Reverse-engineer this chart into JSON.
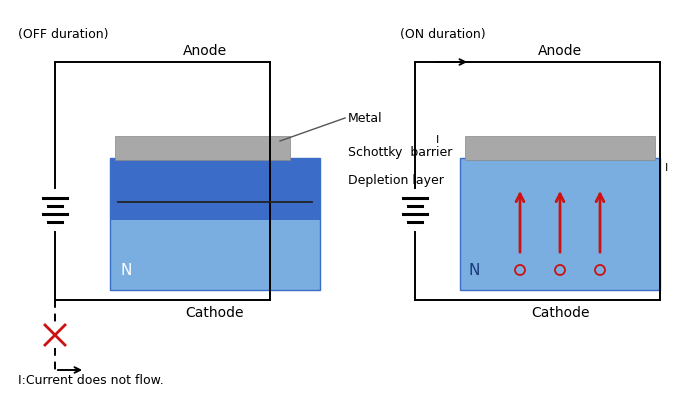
{
  "bg_color": "#ffffff",
  "title_off": "(OFF duration)",
  "title_on": "(ON duration)",
  "label_anode": "Anode",
  "label_cathode": "Cathode",
  "label_N": "N",
  "label_metal": "Metal",
  "label_schottky": "Schottky  barrier",
  "label_depletion": "Depletion layer",
  "label_current": "I:Current does not flow.",
  "label_I": "I",
  "color_n_dark": "#3a6cc8",
  "color_n_light": "#7aaee0",
  "color_metal": "#a8a8a8",
  "color_depletion_line": "#222222",
  "color_red": "#cc1111",
  "color_black": "#000000",
  "color_wire": "#000000"
}
